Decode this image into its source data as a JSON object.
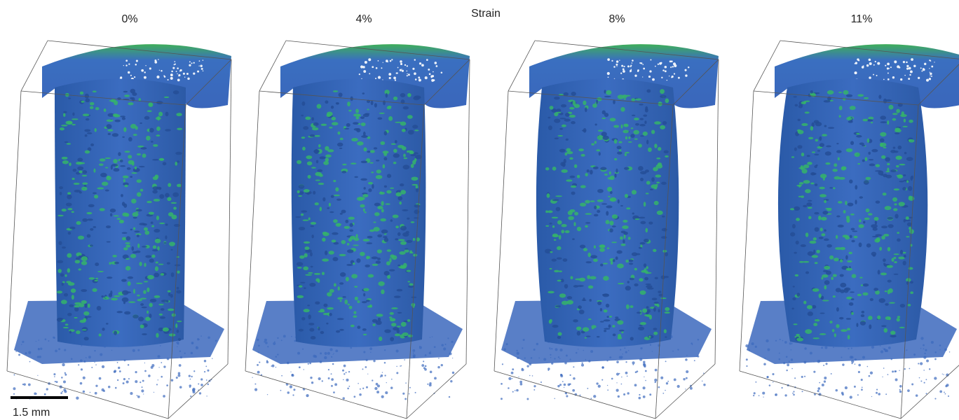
{
  "header": {
    "title": "Strain"
  },
  "panels": [
    {
      "label": "0%"
    },
    {
      "label": "4%"
    },
    {
      "label": "8%"
    },
    {
      "label": "11%"
    }
  ],
  "scale_bar": {
    "label": "1.5 mm"
  }
}
